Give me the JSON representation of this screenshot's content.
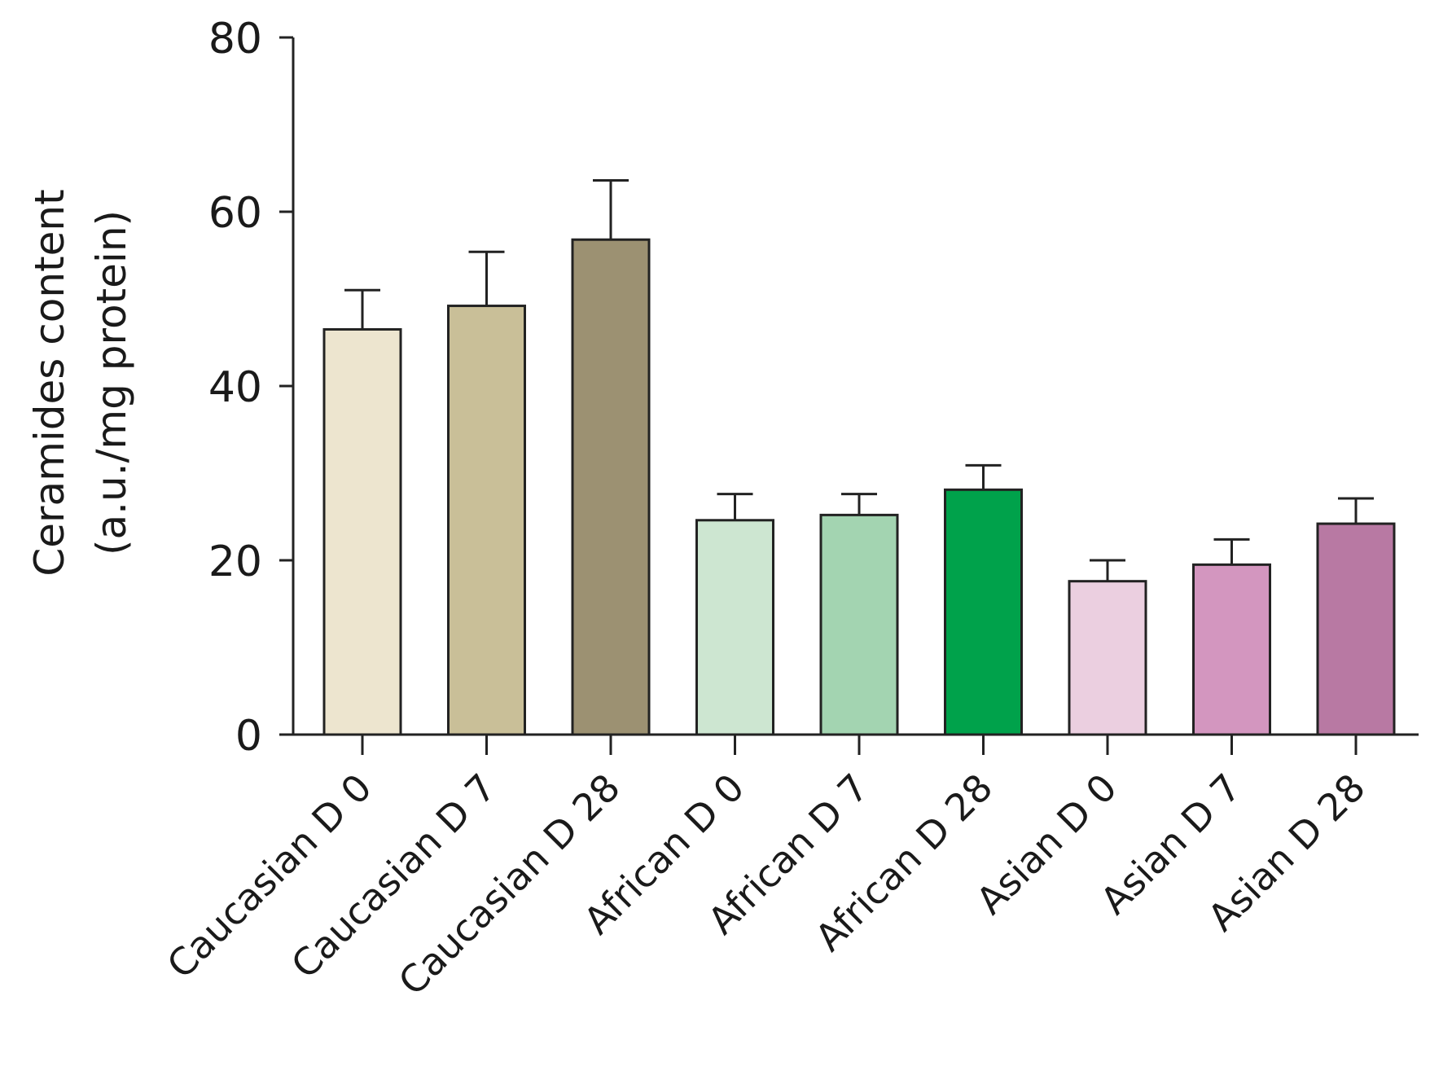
{
  "chart_data": {
    "type": "bar",
    "title": "",
    "xlabel": "",
    "ylabel_lines": [
      "Ceramides content",
      "(a.u./mg protein)"
    ],
    "ylim": [
      0,
      80
    ],
    "yticks": [
      0,
      20,
      40,
      60,
      80
    ],
    "grid": false,
    "categories": [
      "Caucasian D 0",
      "Caucasian D 7",
      "Caucasian D 28",
      "African D 0",
      "African D 7",
      "African D 28",
      "Asian D 0",
      "Asian D 7",
      "Asian D 28"
    ],
    "values": [
      46.5,
      49.2,
      56.8,
      24.6,
      25.2,
      28.1,
      17.6,
      19.5,
      24.2
    ],
    "errors": [
      4.5,
      6.2,
      6.8,
      3.0,
      2.4,
      2.8,
      2.4,
      2.9,
      2.9
    ],
    "colors": [
      "#ede5cf",
      "#c9bf98",
      "#9c9172",
      "#cde6d1",
      "#a3d4b1",
      "#00a24b",
      "#ebcfe0",
      "#d396bf",
      "#b879a3"
    ]
  }
}
